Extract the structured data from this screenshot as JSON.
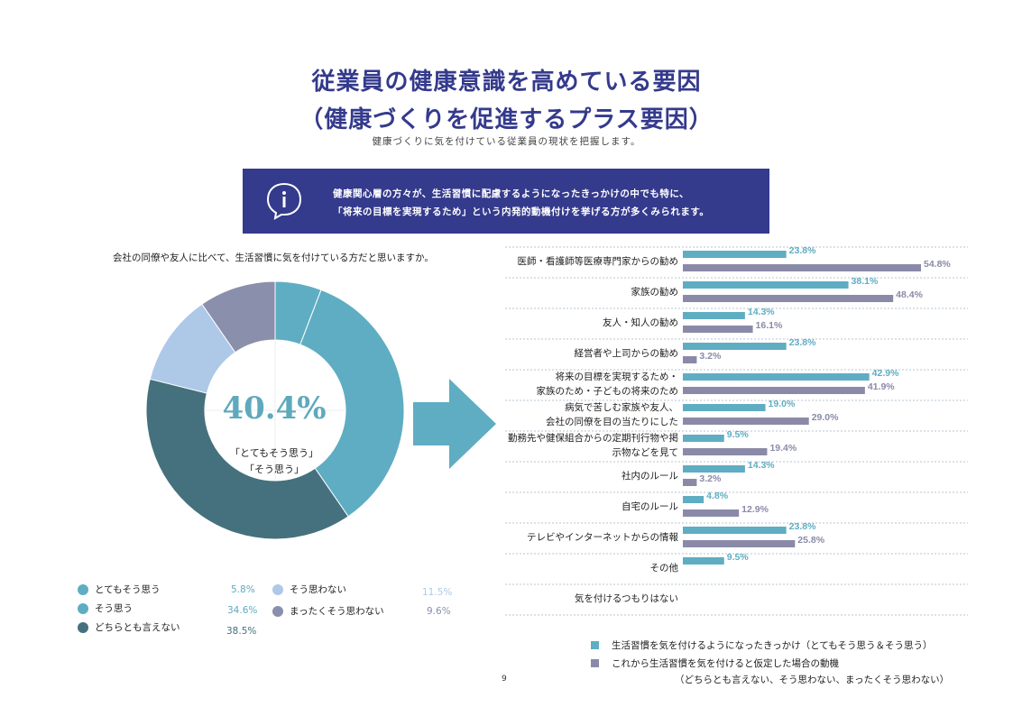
{
  "header": {
    "title_line1": "従業員の健康意識を高めている要因",
    "title_line2": "（健康づくりを促進するプラス要因）",
    "subtitle": "健康づくりに気を付けている従業員の現状を把握します。"
  },
  "banner": {
    "icon": "info-bubble-icon",
    "line1": "健康関心層の方々が、生活習慣に配慮するようになったきっかけの中でも特に、",
    "line2": "「将来の目標を実現するため」という内発的動機付けを挙げる方が多くみられます。"
  },
  "pie": {
    "question": "会社の同僚や友人に比べて、生活習慣に気を付けている方だと思いますか。",
    "center_value": "40.4%",
    "center_label1": "「とてもそう思う」",
    "center_label2": "「そう思う」",
    "legend": [
      {
        "label": "とてもそう思う",
        "value": "5.8%",
        "color": "#5fadc2"
      },
      {
        "label": "そう思う",
        "value": "34.6%",
        "color": "#5fadc2"
      },
      {
        "label": "どちらとも言えない",
        "value": "38.5%",
        "color": "#44717d"
      },
      {
        "label": "そう思わない",
        "value": "11.5%",
        "color": "#aec8e8"
      },
      {
        "label": "まったくそう思わない",
        "value": "9.6%",
        "color": "#8a8fab"
      }
    ]
  },
  "chart_data": {
    "type": "bar",
    "orientation": "horizontal",
    "categories": [
      "医師・看護師等医療専門家からの勧め",
      "家族の勧め",
      "友人・知人の勧め",
      "経営者や上司からの勧め",
      "将来の目標を実現するため・家族のため・子どもの将来のため",
      "病気で苦しむ家族や友人、会社の同僚を目の当たりにした",
      "勤務先や健保組合からの定期刊行物や掲示物などを見て",
      "社内のルール",
      "自宅のルール",
      "テレビやインターネットからの情報",
      "その他",
      "気を付けるつもりはない"
    ],
    "category_lines": [
      [
        "医師・看護師等医療専門家からの勧め"
      ],
      [
        "家族の勧め"
      ],
      [
        "友人・知人の勧め"
      ],
      [
        "経営者や上司からの勧め"
      ],
      [
        "将来の目標を実現するため・",
        "家族のため・子どもの将来のため"
      ],
      [
        "病気で苦しむ家族や友人、",
        "会社の同僚を目の当たりにした"
      ],
      [
        "勤務先や健保組合からの定期刊行物や掲",
        "示物などを見て"
      ],
      [
        "社内のルール"
      ],
      [
        "自宅のルール"
      ],
      [
        "テレビやインターネットからの情報"
      ],
      [
        "その他"
      ],
      [
        "気を付けるつもりはない"
      ]
    ],
    "series": [
      {
        "name": "生活習慣を気を付けるようになったきっかけ（とてもそう思う＆そう思う）",
        "color": "#5fadc2",
        "values": [
          23.8,
          38.1,
          14.3,
          23.8,
          42.9,
          19.0,
          9.5,
          14.3,
          4.8,
          23.8,
          9.5,
          null
        ],
        "labels": [
          "23.8%",
          "38.1%",
          "14.3%",
          "23.8%",
          "42.9%",
          "19.0%",
          "9.5%",
          "14.3%",
          "4.8%",
          "23.8%",
          "9.5%",
          ""
        ]
      },
      {
        "name": "これから生活習慣を気を付けると仮定した場合の動機",
        "name_line2": "（どちらとも言えない、そう思わない、まったくそう思わない）",
        "color": "#8a8aa8",
        "values": [
          54.8,
          48.4,
          16.1,
          3.2,
          41.9,
          29.0,
          19.4,
          3.2,
          12.9,
          25.8,
          null,
          null
        ],
        "labels": [
          "54.8%",
          "48.4%",
          "16.1%",
          "3.2%",
          "41.9%",
          "29.0%",
          "19.4%",
          "3.2%",
          "12.9%",
          "25.8%",
          "",
          ""
        ]
      }
    ],
    "xlim": [
      0,
      60
    ],
    "grid": "dashed-horizontal"
  },
  "footer": {
    "page_number": "9"
  }
}
